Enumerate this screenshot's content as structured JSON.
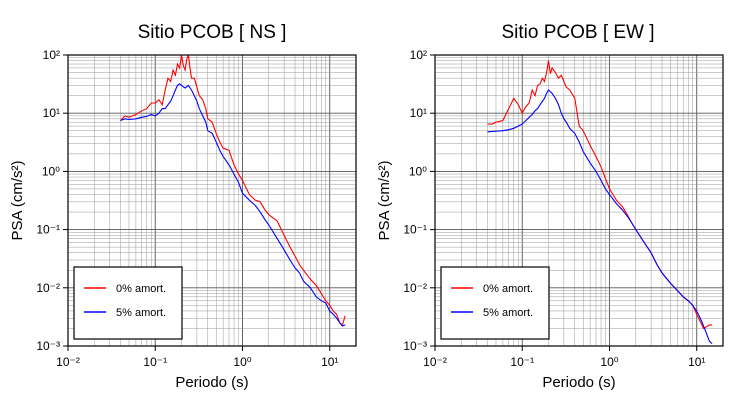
{
  "chart_data": [
    {
      "type": "line",
      "title": "Sitio PCOB [ NS ]",
      "xlabel": "Periodo (s)",
      "ylabel": "PSA (cm/s²)",
      "xscale": "log",
      "yscale": "log",
      "xlim": [
        0.01,
        20
      ],
      "ylim": [
        0.001,
        100
      ],
      "grid": true,
      "legend": "bottom-left",
      "x_ticks": [
        0.01,
        0.1,
        1,
        10
      ],
      "x_tick_labels": [
        "10⁻²",
        "10⁻¹",
        "10⁰",
        "10¹"
      ],
      "y_ticks": [
        0.001,
        0.01,
        0.1,
        1,
        10,
        100
      ],
      "y_tick_labels": [
        "10⁻³",
        "10⁻²",
        "10⁻¹",
        "10⁰",
        "10¹",
        "10²"
      ],
      "series": [
        {
          "name": "0% amort.",
          "color": "#ff0000",
          "x": [
            0.04,
            0.045,
            0.05,
            0.06,
            0.07,
            0.08,
            0.09,
            0.1,
            0.11,
            0.12,
            0.13,
            0.14,
            0.15,
            0.16,
            0.17,
            0.18,
            0.19,
            0.2,
            0.21,
            0.22,
            0.23,
            0.24,
            0.25,
            0.26,
            0.28,
            0.3,
            0.32,
            0.35,
            0.38,
            0.4,
            0.45,
            0.5,
            0.55,
            0.6,
            0.7,
            0.8,
            0.9,
            1.0,
            1.2,
            1.4,
            1.6,
            1.8,
            2.0,
            2.5,
            3.0,
            3.5,
            4.0,
            4.5,
            5.0,
            6.0,
            7.0,
            8.0,
            9.0,
            10.0,
            11.0,
            12.0,
            13.0,
            14.0,
            15.0
          ],
          "y": [
            7.5,
            9.0,
            8.5,
            9.5,
            11,
            12,
            15,
            15,
            17,
            14,
            25,
            40,
            35,
            55,
            45,
            70,
            60,
            100,
            65,
            55,
            85,
            100,
            60,
            40,
            40,
            28,
            20,
            17,
            12,
            8,
            7,
            4.5,
            3.2,
            2.5,
            2.3,
            1.3,
            0.9,
            0.7,
            0.4,
            0.32,
            0.3,
            0.22,
            0.18,
            0.14,
            0.08,
            0.05,
            0.035,
            0.025,
            0.02,
            0.014,
            0.011,
            0.008,
            0.006,
            0.005,
            0.004,
            0.0035,
            0.0025,
            0.0023,
            0.0033
          ]
        },
        {
          "name": "5% amort.",
          "color": "#0000ff",
          "x": [
            0.04,
            0.045,
            0.05,
            0.06,
            0.07,
            0.08,
            0.09,
            0.1,
            0.11,
            0.12,
            0.13,
            0.14,
            0.15,
            0.16,
            0.17,
            0.18,
            0.19,
            0.2,
            0.22,
            0.24,
            0.26,
            0.28,
            0.3,
            0.32,
            0.35,
            0.38,
            0.4,
            0.45,
            0.5,
            0.55,
            0.6,
            0.7,
            0.8,
            0.9,
            1.0,
            1.2,
            1.4,
            1.6,
            1.8,
            2.0,
            2.5,
            3.0,
            3.5,
            4.0,
            4.5,
            5.0,
            6.0,
            7.0,
            8.0,
            9.0,
            10.0,
            11.0,
            12.0,
            13.0,
            14.0,
            15.0
          ],
          "y": [
            7.5,
            8.0,
            7.8,
            8.0,
            8.5,
            8.8,
            9.5,
            9.0,
            10,
            12,
            12,
            14,
            16,
            20,
            25,
            30,
            32,
            30,
            27,
            30,
            25,
            20,
            16,
            12,
            9,
            7,
            5.0,
            4.5,
            3.2,
            2.3,
            1.8,
            1.3,
            0.9,
            0.65,
            0.42,
            0.32,
            0.26,
            0.2,
            0.15,
            0.12,
            0.07,
            0.045,
            0.03,
            0.022,
            0.018,
            0.013,
            0.01,
            0.007,
            0.006,
            0.0055,
            0.004,
            0.0035,
            0.003,
            0.0025,
            0.0022,
            0.0023
          ]
        }
      ]
    },
    {
      "type": "line",
      "title": "Sitio PCOB [ EW ]",
      "xlabel": "Periodo (s)",
      "ylabel": "PSA (cm/s²)",
      "xscale": "log",
      "yscale": "log",
      "xlim": [
        0.01,
        20
      ],
      "ylim": [
        0.001,
        100
      ],
      "grid": true,
      "legend": "bottom-left",
      "x_ticks": [
        0.01,
        0.1,
        1,
        10
      ],
      "x_tick_labels": [
        "10⁻²",
        "10⁻¹",
        "10⁰",
        "10¹"
      ],
      "y_ticks": [
        0.001,
        0.01,
        0.1,
        1,
        10,
        100
      ],
      "y_tick_labels": [
        "10⁻³",
        "10⁻²",
        "10⁻¹",
        "10⁰",
        "10¹",
        "10²"
      ],
      "series": [
        {
          "name": "0% amort.",
          "color": "#ff0000",
          "x": [
            0.04,
            0.045,
            0.05,
            0.06,
            0.07,
            0.08,
            0.09,
            0.1,
            0.11,
            0.12,
            0.13,
            0.14,
            0.15,
            0.16,
            0.17,
            0.18,
            0.19,
            0.2,
            0.21,
            0.22,
            0.24,
            0.26,
            0.28,
            0.3,
            0.32,
            0.35,
            0.4,
            0.45,
            0.5,
            0.6,
            0.7,
            0.8,
            0.9,
            1.0,
            1.2,
            1.4,
            1.6,
            1.8,
            2.0,
            2.5,
            3.0,
            3.5,
            4.0,
            5.0,
            6.0,
            7.0,
            8.0,
            9.0,
            10.0,
            12.0,
            14.0,
            15.0
          ],
          "y": [
            6.5,
            6.5,
            7,
            7.5,
            12,
            18,
            14,
            10,
            13,
            15,
            25,
            20,
            30,
            32,
            40,
            35,
            50,
            80,
            48,
            60,
            50,
            40,
            45,
            35,
            28,
            25,
            18,
            6,
            5,
            2.8,
            1.8,
            1.2,
            0.75,
            0.5,
            0.32,
            0.25,
            0.18,
            0.13,
            0.1,
            0.06,
            0.04,
            0.025,
            0.018,
            0.012,
            0.009,
            0.007,
            0.006,
            0.005,
            0.0035,
            0.002,
            0.0023,
            0.0023
          ]
        },
        {
          "name": "5% amort.",
          "color": "#0000ff",
          "x": [
            0.04,
            0.05,
            0.06,
            0.07,
            0.08,
            0.09,
            0.1,
            0.11,
            0.12,
            0.13,
            0.14,
            0.15,
            0.16,
            0.17,
            0.18,
            0.19,
            0.2,
            0.22,
            0.24,
            0.26,
            0.28,
            0.3,
            0.32,
            0.35,
            0.4,
            0.45,
            0.5,
            0.6,
            0.7,
            0.8,
            0.9,
            1.0,
            1.2,
            1.4,
            1.6,
            1.8,
            2.0,
            2.5,
            3.0,
            3.5,
            4.0,
            5.0,
            6.0,
            7.0,
            8.0,
            9.0,
            10.0,
            11.0,
            12.0,
            13.0,
            14.0,
            15.0
          ],
          "y": [
            4.8,
            4.9,
            5.0,
            5.2,
            5.5,
            6.0,
            6.5,
            7.5,
            8.5,
            9.5,
            11,
            12,
            14,
            16,
            18,
            22,
            25,
            22,
            18,
            14,
            10,
            8,
            7,
            5.5,
            4.5,
            3.2,
            2.2,
            1.4,
            1.0,
            0.7,
            0.5,
            0.4,
            0.28,
            0.22,
            0.17,
            0.13,
            0.1,
            0.06,
            0.04,
            0.025,
            0.018,
            0.012,
            0.009,
            0.007,
            0.006,
            0.005,
            0.004,
            0.003,
            0.0022,
            0.0016,
            0.0012,
            0.0011
          ]
        }
      ]
    }
  ]
}
